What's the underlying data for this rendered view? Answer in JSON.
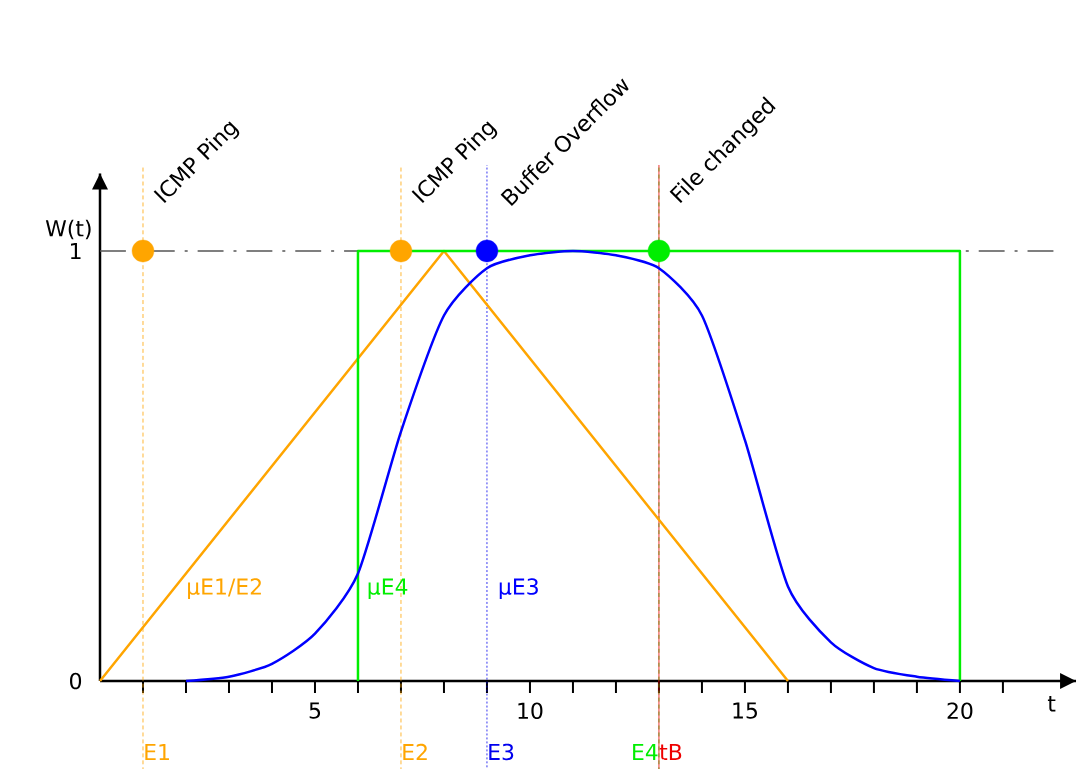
{
  "chart_data": {
    "type": "line",
    "xlabel": "t",
    "ylabel": "W(t)",
    "xlim": [
      0,
      22.7
    ],
    "ylim": [
      0,
      1.18
    ],
    "xticks": [
      {
        "value": 1,
        "label": null
      },
      {
        "value": 2,
        "label": null
      },
      {
        "value": 3,
        "label": null
      },
      {
        "value": 4,
        "label": null
      },
      5,
      {
        "value": 6,
        "label": null
      },
      {
        "value": 7,
        "label": null
      },
      {
        "value": 8,
        "label": null
      },
      {
        "value": 9,
        "label": null
      },
      10,
      {
        "value": 11,
        "label": null
      },
      {
        "value": 12,
        "label": null
      },
      {
        "value": 13,
        "label": null
      },
      {
        "value": 14,
        "label": null
      },
      15,
      {
        "value": 16,
        "label": null
      },
      {
        "value": 17,
        "label": null
      },
      {
        "value": 18,
        "label": null
      },
      {
        "value": 19,
        "label": null
      },
      20,
      {
        "value": 21,
        "label": null
      }
    ],
    "yticks": [
      0,
      1
    ],
    "grid": false,
    "marker": "none",
    "series": [
      {
        "name": "μE1/E2",
        "color": "#ffa500",
        "x": [
          0,
          8,
          16
        ],
        "values": [
          0,
          1,
          0
        ]
      },
      {
        "name": "μE4",
        "color": "#00ee00",
        "x": [
          6,
          6,
          20,
          20
        ],
        "values": [
          0,
          1,
          1,
          0
        ]
      },
      {
        "name": "μE3",
        "color": "#0000ff",
        "x": [
          2,
          3,
          4,
          5,
          6,
          7,
          8,
          9,
          10,
          11,
          12,
          13,
          14,
          15,
          16,
          17,
          18,
          19,
          20
        ],
        "values": [
          0,
          0.01,
          0.04,
          0.11,
          0.25,
          0.58,
          0.85,
          0.96,
          0.99,
          1,
          0.99,
          0.96,
          0.85,
          0.56,
          0.22,
          0.09,
          0.03,
          0.01,
          0
        ]
      },
      {
        "type": "scatter",
        "marker": "circle",
        "color": "#ffa500",
        "x": [
          1,
          7
        ],
        "values": [
          1,
          1
        ]
      },
      {
        "type": "scatter",
        "marker": "circle",
        "color": "#0000ff",
        "x": [
          9
        ],
        "values": [
          1
        ]
      },
      {
        "type": "scatter",
        "marker": "circle",
        "color": "#00ee00",
        "x": [
          13
        ],
        "values": [
          1
        ]
      }
    ],
    "ref_lines": [
      {
        "axis": "y",
        "value": 1,
        "color": "#555555",
        "line_style": "dashdot"
      },
      {
        "axis": "x",
        "value": 1,
        "label": "E1",
        "color": "#ffa500",
        "line_style": "dashed"
      },
      {
        "axis": "x",
        "value": 7,
        "label": "E2",
        "color": "#ffa500",
        "line_style": "dashed"
      },
      {
        "axis": "x",
        "value": 9,
        "label": "E3",
        "color": "#0000ee",
        "line_style": "dotted"
      },
      {
        "axis": "x",
        "value": 13,
        "label": "E4",
        "color": "#00ee00",
        "line_style": "dashed"
      },
      {
        "axis": "x",
        "value": 13,
        "label": "tB",
        "color": "#ee0000",
        "line_style": "solid"
      }
    ],
    "annotations": [
      {
        "text": "ICMP Ping",
        "x": 1,
        "y": 1
      },
      {
        "text": "ICMP Ping",
        "x": 7,
        "y": 1
      },
      {
        "text": "Buffer Overflow",
        "x": 9,
        "y": 1
      },
      {
        "text": "File changed",
        "x": 13,
        "y": 1
      }
    ]
  }
}
